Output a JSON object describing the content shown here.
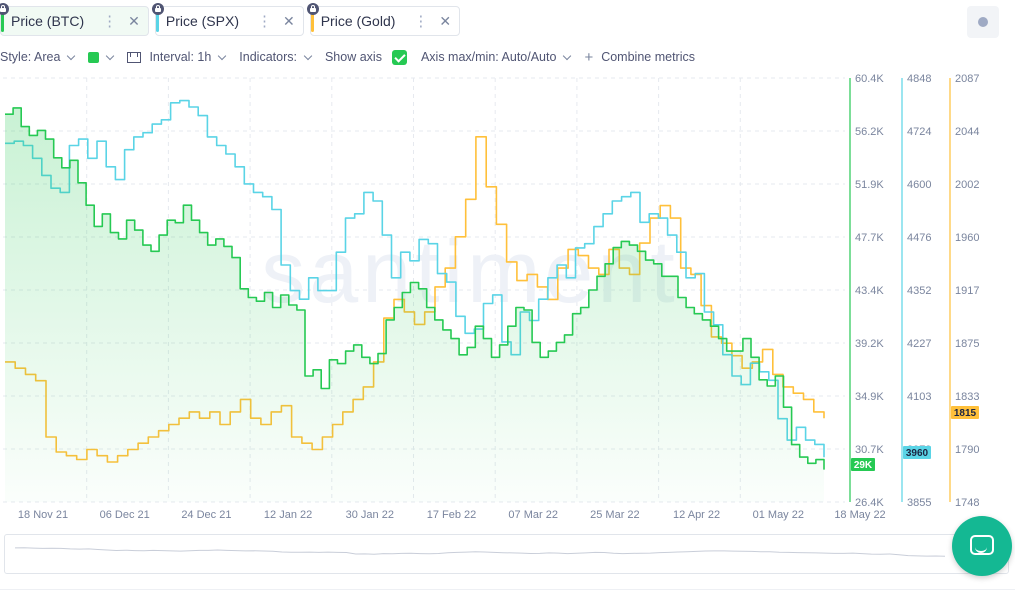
{
  "tabs": [
    {
      "label": "Price (BTC)",
      "color": "#26c953",
      "active": true
    },
    {
      "label": "Price (SPX)",
      "color": "#5ad4e6",
      "active": false
    },
    {
      "label": "Price (Gold)",
      "color": "#ffc03a",
      "active": false
    }
  ],
  "settings": {
    "style_label": "Style: Area",
    "interval_label": "Interval: 1h",
    "indicators_label": "Indicators:",
    "show_axis_label": "Show axis",
    "axis_minmax_label": "Axis max/min: Auto/Auto",
    "combine_label": "Combine metrics",
    "series_color": "#26c953"
  },
  "watermark": "santiment",
  "chart_data": {
    "type": "line",
    "x_labels": [
      "18 Nov 21",
      "06 Dec 21",
      "24 Dec 21",
      "12 Jan 22",
      "30 Jan 22",
      "17 Feb 22",
      "07 Mar 22",
      "25 Mar 22",
      "12 Apr 22",
      "01 May 22",
      "18 May 22"
    ],
    "axes": [
      {
        "name": "Price (BTC)",
        "color": "#26c953",
        "ticks": [
          "60.4K",
          "56.2K",
          "51.9K",
          "47.7K",
          "43.4K",
          "39.2K",
          "34.9K",
          "30.7K",
          "26.4K"
        ],
        "current": "29K"
      },
      {
        "name": "Price (SPX)",
        "color": "#5ad4e6",
        "ticks": [
          "4848",
          "4724",
          "4600",
          "4476",
          "4352",
          "4227",
          "4103",
          "3979",
          "3855"
        ],
        "current": "3960"
      },
      {
        "name": "Price (Gold)",
        "color": "#ffc03a",
        "ticks": [
          "2087",
          "2044",
          "2002",
          "1960",
          "1917",
          "1875",
          "1833",
          "1790",
          "1748"
        ],
        "current": "1815"
      }
    ],
    "series": [
      {
        "name": "Price (BTC)",
        "style": "area",
        "color": "#26c953",
        "ylim": [
          26400,
          60400
        ],
        "values": [
          57500,
          58000,
          56500,
          55800,
          56200,
          55500,
          54000,
          53200,
          53800,
          52000,
          50200,
          48500,
          49500,
          48000,
          47500,
          49000,
          48200,
          47000,
          46500,
          47800,
          49000,
          48800,
          50200,
          49000,
          48000,
          47000,
          47500,
          46900,
          46000,
          43500,
          42800,
          42500,
          43200,
          42000,
          43000,
          42200,
          41800,
          36500,
          37000,
          35500,
          37800,
          37500,
          38500,
          39000,
          38000,
          37500,
          38300,
          41000,
          42000,
          43200,
          44000,
          43500,
          42000,
          41000,
          40200,
          39500,
          38200,
          38800,
          40500,
          39500,
          38000,
          39000,
          40500,
          42000,
          41800,
          39200,
          38000,
          38500,
          39200,
          39800,
          41500,
          42000,
          43400,
          44500,
          45500,
          46800,
          47300,
          47000,
          46500,
          45800,
          45500,
          44500,
          44500,
          42800,
          42000,
          41500,
          41000,
          40500,
          39500,
          38500,
          38500,
          39500,
          38000,
          36200,
          35700,
          36500,
          34000,
          31000,
          30000,
          29500,
          29800,
          29000
        ]
      },
      {
        "name": "Price (SPX)",
        "style": "line",
        "color": "#5ad4e6",
        "ylim": [
          3855,
          4848
        ],
        "values": [
          4695,
          4700,
          4690,
          4660,
          4620,
          4590,
          4580,
          4690,
          4705,
          4660,
          4700,
          4640,
          4610,
          4680,
          4710,
          4720,
          4740,
          4750,
          4790,
          4795,
          4780,
          4760,
          4710,
          4690,
          4670,
          4640,
          4600,
          4580,
          4570,
          4540,
          4410,
          4350,
          4330,
          4380,
          4350,
          4350,
          4440,
          4520,
          4530,
          4580,
          4560,
          4480,
          4380,
          4440,
          4420,
          4470,
          4460,
          4390,
          4370,
          4290,
          4250,
          4260,
          4320,
          4340,
          4230,
          4200,
          4300,
          4280,
          4330,
          4380,
          4410,
          4380,
          4450,
          4460,
          4500,
          4530,
          4560,
          4570,
          4580,
          4510,
          4530,
          4520,
          4480,
          4440,
          4380,
          4390,
          4300,
          4270,
          4200,
          4150,
          4130,
          4180,
          4160,
          4140,
          4050,
          4000,
          4030,
          4000,
          3990,
          3960
        ]
      },
      {
        "name": "Price (Gold)",
        "style": "line",
        "color": "#ffc03a",
        "ylim": [
          1748,
          2087
        ],
        "values": [
          1860,
          1855,
          1850,
          1845,
          1800,
          1788,
          1785,
          1782,
          1790,
          1785,
          1780,
          1785,
          1790,
          1795,
          1800,
          1805,
          1810,
          1815,
          1820,
          1815,
          1820,
          1810,
          1820,
          1830,
          1815,
          1810,
          1820,
          1825,
          1800,
          1795,
          1790,
          1800,
          1810,
          1820,
          1830,
          1840,
          1860,
          1895,
          1910,
          1900,
          1890,
          1900,
          1920,
          1935,
          1960,
          1990,
          2040,
          2000,
          1970,
          1940,
          1925,
          1930,
          1920,
          1910,
          1935,
          1950,
          1945,
          1935,
          1930,
          1950,
          1935,
          1930,
          1955,
          1975,
          1985,
          1975,
          1935,
          1930,
          1905,
          1880,
          1875,
          1865,
          1855,
          1860,
          1870,
          1850,
          1840,
          1835,
          1830,
          1820,
          1815
        ]
      }
    ]
  }
}
